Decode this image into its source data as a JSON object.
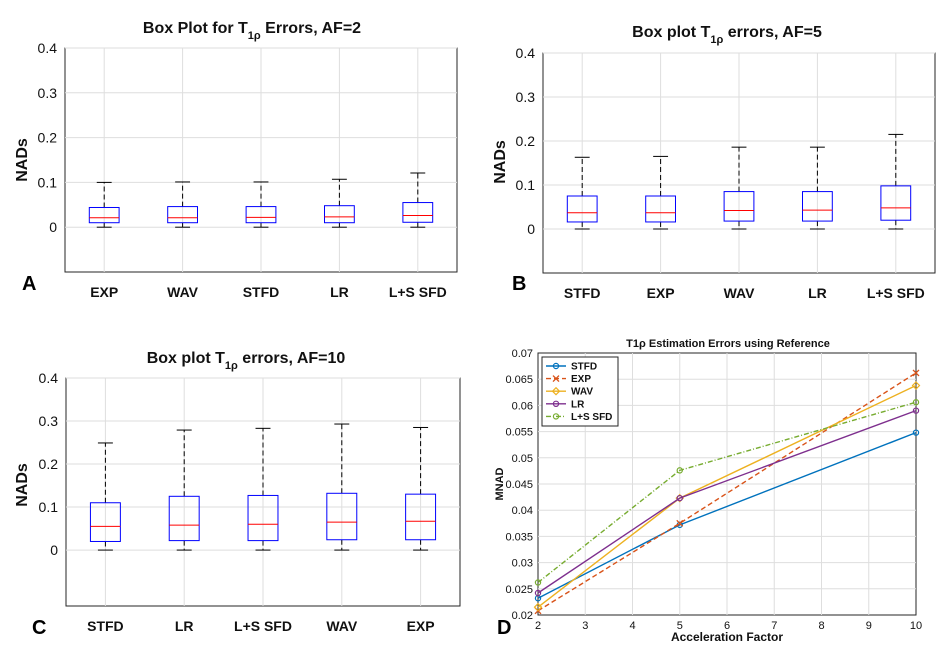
{
  "panels": [
    {
      "id": "A",
      "panel_label": "A",
      "title_prefix": "Box Plot for T",
      "title_sub": "1ρ",
      "title_suffix": " Errors, AF=2",
      "ylabel": "NADs",
      "yticks": [
        "0",
        "0.1",
        "0.2",
        "0.3",
        "0.4"
      ],
      "chart_data": {
        "type": "box",
        "categories": [
          "EXP",
          "WAV",
          "STFD",
          "LR",
          "L+S SFD"
        ],
        "ylim": [
          -0.1,
          0.4
        ],
        "whisker_low": [
          0,
          0,
          0,
          0,
          0
        ],
        "q1": [
          0.01,
          0.01,
          0.01,
          0.01,
          0.011
        ],
        "median": [
          0.021,
          0.021,
          0.022,
          0.023,
          0.026
        ],
        "q3": [
          0.044,
          0.046,
          0.046,
          0.048,
          0.055
        ],
        "whisker_high": [
          0.1,
          0.101,
          0.101,
          0.107,
          0.121
        ]
      }
    },
    {
      "id": "B",
      "panel_label": "B",
      "title_prefix": "Box plot T",
      "title_sub": "1ρ",
      "title_suffix": " errors, AF=5",
      "ylabel": "NADs",
      "yticks": [
        "0",
        "0.1",
        "0.2",
        "0.3",
        "0.4"
      ],
      "chart_data": {
        "type": "box",
        "categories": [
          "STFD",
          "EXP",
          "WAV",
          "LR",
          "L+S SFD"
        ],
        "ylim": [
          -0.1,
          0.4
        ],
        "whisker_low": [
          0,
          0,
          0,
          0,
          0
        ],
        "q1": [
          0.016,
          0.016,
          0.018,
          0.018,
          0.02
        ],
        "median": [
          0.037,
          0.037,
          0.042,
          0.043,
          0.048
        ],
        "q3": [
          0.075,
          0.075,
          0.085,
          0.085,
          0.098
        ],
        "whisker_high": [
          0.163,
          0.165,
          0.186,
          0.186,
          0.215
        ]
      }
    },
    {
      "id": "C",
      "panel_label": "C",
      "title_prefix": "Box plot   T",
      "title_sub": "1ρ",
      "title_suffix": " errors, AF=10",
      "ylabel": "NADs",
      "yticks": [
        "0",
        "0.1",
        "0.2",
        "0.3",
        "0.4"
      ],
      "chart_data": {
        "type": "box",
        "categories": [
          "STFD",
          "LR",
          "L+S SFD",
          "WAV",
          "EXP"
        ],
        "ylim": [
          -0.13,
          0.4
        ],
        "whisker_low": [
          0,
          0,
          0,
          0,
          0
        ],
        "q1": [
          0.02,
          0.022,
          0.022,
          0.024,
          0.024
        ],
        "median": [
          0.055,
          0.058,
          0.06,
          0.065,
          0.067
        ],
        "q3": [
          0.11,
          0.125,
          0.127,
          0.132,
          0.13
        ],
        "whisker_high": [
          0.249,
          0.279,
          0.283,
          0.293,
          0.285
        ]
      }
    },
    {
      "id": "D",
      "panel_label": "D",
      "title": "T1ρ Estimation Errors using Reference",
      "xlabel": "Acceleration Factor",
      "ylabel": "MNAD",
      "chart_data": {
        "type": "line",
        "x": [
          2,
          5,
          10
        ],
        "xlim": [
          2,
          10
        ],
        "ylim": [
          0.02,
          0.07
        ],
        "xticks": [
          "2",
          "3",
          "4",
          "5",
          "6",
          "7",
          "8",
          "9",
          "10"
        ],
        "yticks": [
          "0.02",
          "0.025",
          "0.03",
          "0.035",
          "0.04",
          "0.045",
          "0.05",
          "0.055",
          "0.06",
          "0.065",
          "0.07"
        ],
        "series": [
          {
            "name": "STFD",
            "values": [
              0.0232,
              0.0372,
              0.0548
            ],
            "color": "#0072BD",
            "dash": "",
            "marker": "circle"
          },
          {
            "name": "EXP",
            "values": [
              0.0208,
              0.0375,
              0.0662
            ],
            "color": "#D95319",
            "dash": "5,3",
            "marker": "x"
          },
          {
            "name": "WAV",
            "values": [
              0.0215,
              0.0423,
              0.0638
            ],
            "color": "#EDB120",
            "dash": "",
            "marker": "diamond"
          },
          {
            "name": "LR",
            "values": [
              0.0242,
              0.0423,
              0.059
            ],
            "color": "#7E2F8E",
            "dash": "",
            "marker": "circle"
          },
          {
            "name": "L+S SFD",
            "values": [
              0.0262,
              0.0476,
              0.0606
            ],
            "color": "#77AC30",
            "dash": "5,2,1,2",
            "marker": "circle"
          }
        ]
      }
    }
  ],
  "colors": {
    "box": "#0000FF",
    "median": "#FF0000",
    "grid": "#DEDEDE",
    "axis": "#262626"
  }
}
